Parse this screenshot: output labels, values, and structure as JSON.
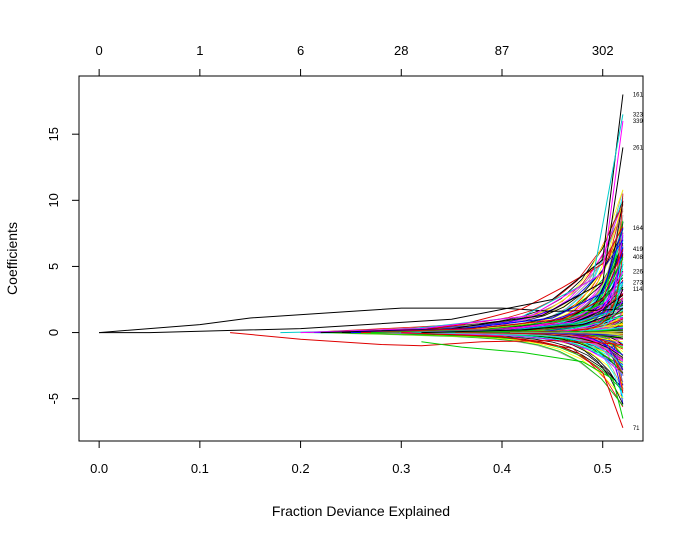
{
  "chart_data": {
    "type": "line",
    "xlabel": "Fraction Deviance Explained",
    "ylabel": "Coefficients",
    "xlim": [
      -0.02,
      0.54
    ],
    "ylim": [
      -8.2,
      19.4
    ],
    "grid": false,
    "legend": "none",
    "x_ticks": [
      0.0,
      0.1,
      0.2,
      0.3,
      0.4,
      0.5
    ],
    "x_tick_labels": [
      "0.0",
      "0.1",
      "0.2",
      "0.3",
      "0.4",
      "0.5"
    ],
    "y_ticks": [
      -5,
      0,
      5,
      10,
      15
    ],
    "y_tick_labels": [
      "-5",
      "0",
      "5",
      "10",
      "15"
    ],
    "top_axis": {
      "label": "",
      "ticks": [
        0.0,
        0.1,
        0.2,
        0.3,
        0.4,
        0.5
      ],
      "tick_labels": [
        "0",
        "1",
        "6",
        "28",
        "87",
        "302"
      ]
    },
    "colors": [
      "#000000",
      "#df0000",
      "#00cc00",
      "#0000ff",
      "#00ffff",
      "#ff00ff",
      "#ffff00",
      "#999999"
    ],
    "x_end": 0.52,
    "series": [
      {
        "name": "161",
        "color": "#000000",
        "values": [
          [
            0.0,
            0
          ],
          [
            0.05,
            0.0
          ],
          [
            0.2,
            0.3
          ],
          [
            0.35,
            1.0
          ],
          [
            0.45,
            2.5
          ],
          [
            0.5,
            5.5
          ],
          [
            0.52,
            18.0
          ]
        ]
      },
      {
        "name": "323",
        "color": "#00cccc",
        "values": [
          [
            0.18,
            0
          ],
          [
            0.3,
            0.2
          ],
          [
            0.42,
            1.2
          ],
          [
            0.49,
            4.0
          ],
          [
            0.52,
            16.5
          ]
        ]
      },
      {
        "name": "339",
        "color": "#ff00ff",
        "values": [
          [
            0.2,
            0
          ],
          [
            0.32,
            0.3
          ],
          [
            0.43,
            1.3
          ],
          [
            0.5,
            4.5
          ],
          [
            0.52,
            16.0
          ]
        ]
      },
      {
        "name": "261",
        "color": "#000000",
        "values": [
          [
            0.22,
            0
          ],
          [
            0.35,
            0.3
          ],
          [
            0.44,
            1.3
          ],
          [
            0.5,
            3.8
          ],
          [
            0.52,
            14.0
          ]
        ]
      },
      {
        "name": "164",
        "color": "#0000ff",
        "values": [
          [
            0.25,
            0
          ],
          [
            0.36,
            0.3
          ],
          [
            0.45,
            1.1
          ],
          [
            0.5,
            3.0
          ],
          [
            0.52,
            7.9
          ]
        ]
      },
      {
        "name": "419",
        "color": "#df0000",
        "values": [
          [
            0.26,
            0
          ],
          [
            0.37,
            0.3
          ],
          [
            0.46,
            1.0
          ],
          [
            0.5,
            2.5
          ],
          [
            0.52,
            6.3
          ]
        ]
      },
      {
        "name": "408",
        "color": "#00cc00",
        "values": [
          [
            0.27,
            0
          ],
          [
            0.38,
            0.2
          ],
          [
            0.46,
            0.9
          ],
          [
            0.5,
            2.2
          ],
          [
            0.52,
            5.7
          ]
        ]
      },
      {
        "name": "226",
        "color": "#ff00ff",
        "values": [
          [
            0.3,
            0
          ],
          [
            0.4,
            0.2
          ],
          [
            0.47,
            0.8
          ],
          [
            0.5,
            1.8
          ],
          [
            0.52,
            4.6
          ]
        ]
      },
      {
        "name": "273",
        "color": "#00cccc",
        "values": [
          [
            0.31,
            0
          ],
          [
            0.41,
            0.2
          ],
          [
            0.47,
            0.7
          ],
          [
            0.51,
            1.6
          ],
          [
            0.52,
            3.8
          ]
        ]
      },
      {
        "name": "114",
        "color": "#000000",
        "values": [
          [
            0.32,
            0
          ],
          [
            0.42,
            0.2
          ],
          [
            0.48,
            0.6
          ],
          [
            0.51,
            1.4
          ],
          [
            0.52,
            3.3
          ]
        ]
      },
      {
        "name": "71",
        "color": "#df0000",
        "values": [
          [
            0.3,
            0
          ],
          [
            0.4,
            -0.3
          ],
          [
            0.47,
            -1.2
          ],
          [
            0.5,
            -3.0
          ],
          [
            0.52,
            -7.2
          ]
        ]
      }
    ],
    "highlight_series": [
      {
        "color": "#000000",
        "values": [
          [
            0.0,
            0
          ],
          [
            0.1,
            0.6
          ],
          [
            0.15,
            1.1
          ],
          [
            0.25,
            1.6
          ],
          [
            0.3,
            1.85
          ],
          [
            0.4,
            1.85
          ],
          [
            0.45,
            1.6
          ],
          [
            0.5,
            1.7
          ],
          [
            0.52,
            1.8
          ]
        ]
      },
      {
        "color": "#df0000",
        "values": [
          [
            0.13,
            0
          ],
          [
            0.2,
            -0.5
          ],
          [
            0.28,
            -0.9
          ],
          [
            0.32,
            -1.0
          ],
          [
            0.38,
            -0.7
          ],
          [
            0.45,
            -0.6
          ],
          [
            0.5,
            -0.8
          ],
          [
            0.52,
            -0.9
          ]
        ]
      },
      {
        "color": "#00cc00",
        "values": [
          [
            0.32,
            -0.7
          ],
          [
            0.36,
            -1.1
          ],
          [
            0.42,
            -1.5
          ],
          [
            0.48,
            -2.2
          ],
          [
            0.51,
            -3.5
          ],
          [
            0.52,
            -6.5
          ]
        ]
      },
      {
        "color": "#df0000",
        "values": [
          [
            0.3,
            0
          ],
          [
            0.36,
            0.6
          ],
          [
            0.42,
            1.8
          ],
          [
            0.46,
            3.4
          ],
          [
            0.5,
            5.2
          ],
          [
            0.52,
            8.0
          ]
        ]
      }
    ]
  }
}
